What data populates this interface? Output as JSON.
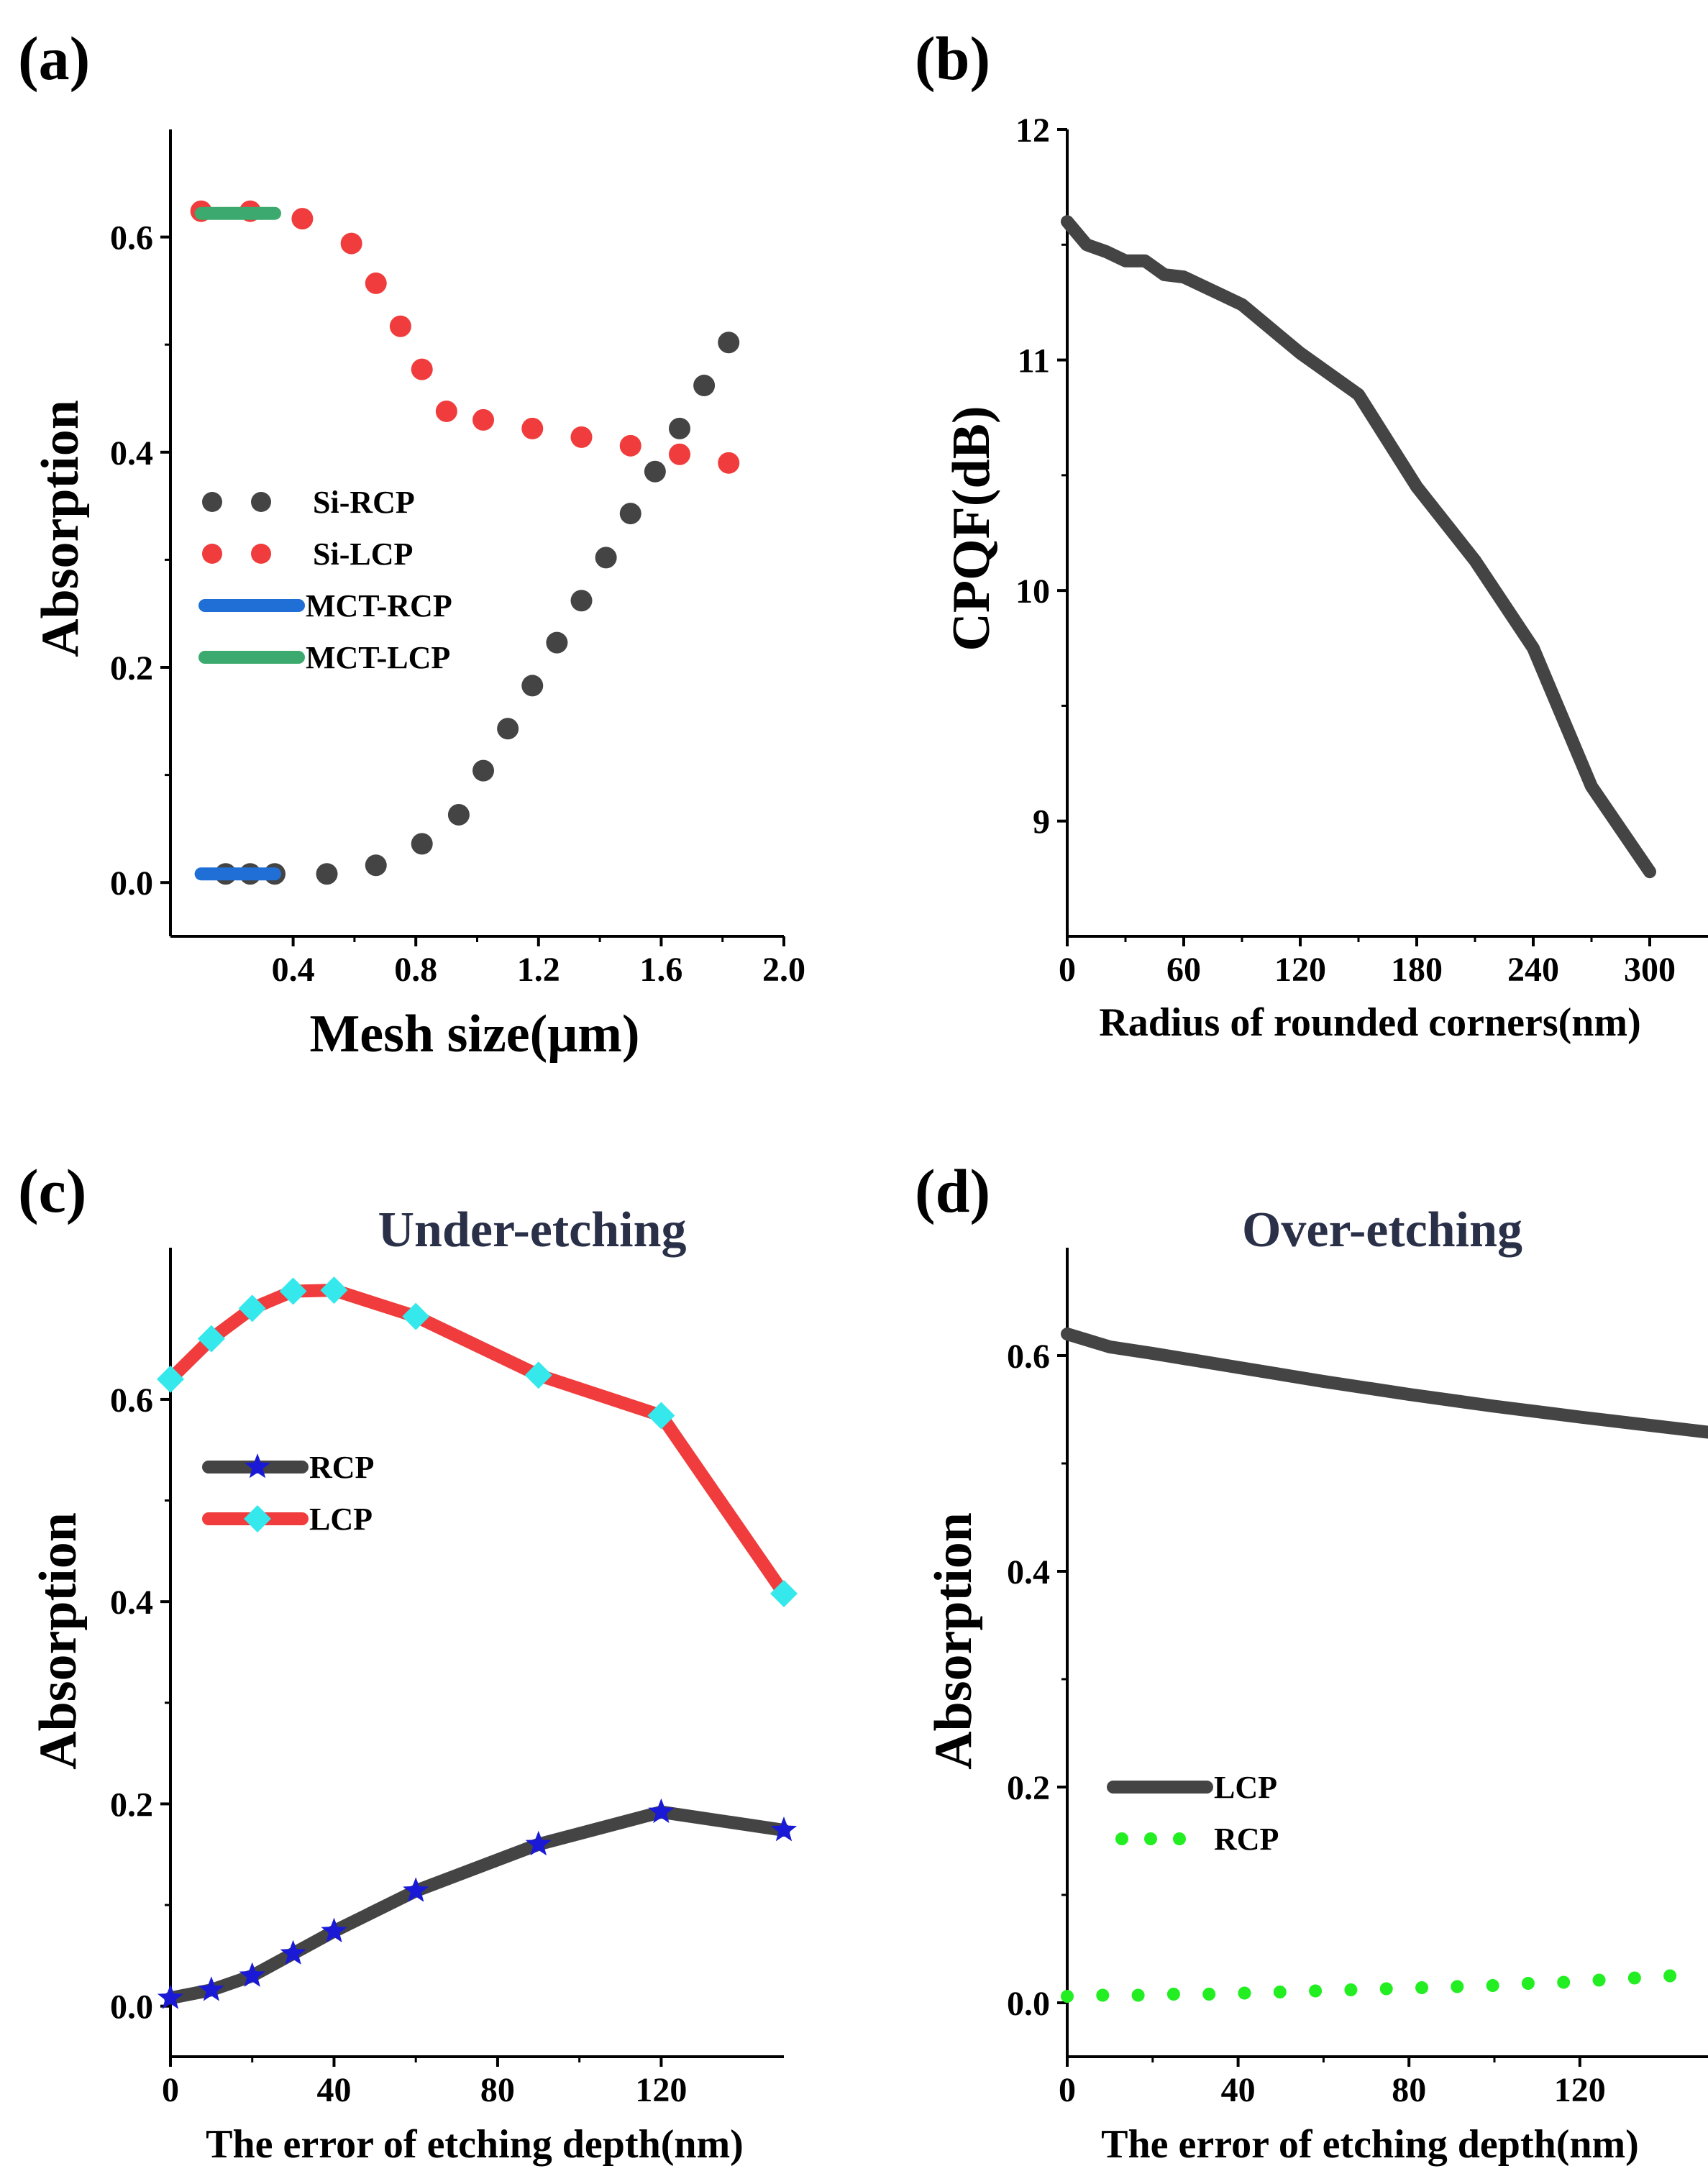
{
  "figure": {
    "background": "#ffffff"
  },
  "chart_data": [
    {
      "id": "a",
      "type": "scatter",
      "panel_label": "(a)",
      "title": "",
      "xlabel": "Mesh size(μm)",
      "ylabel": "Absorption",
      "xlim": [
        0.0,
        2.0
      ],
      "ylim": [
        -0.05,
        0.7
      ],
      "xticks": [
        0.4,
        0.8,
        1.2,
        1.6,
        2.0
      ],
      "xtick_labels": [
        "0.4",
        "0.8",
        "1.2",
        "1.6",
        "2.0"
      ],
      "yticks": [
        0.0,
        0.2,
        0.4,
        0.6
      ],
      "ytick_labels": [
        "0.0",
        "0.2",
        "0.4",
        "0.6"
      ],
      "legend_position": "center-left",
      "series": [
        {
          "name": "Si-RCP",
          "style": "dots",
          "color": "#444444",
          "x": [
            0.18,
            0.26,
            0.34,
            0.51,
            0.67,
            0.82,
            0.94,
            1.02,
            1.1,
            1.18,
            1.26,
            1.34,
            1.42,
            1.5,
            1.58,
            1.66,
            1.74,
            1.82
          ],
          "y": [
            0.008,
            0.008,
            0.008,
            0.008,
            0.016,
            0.036,
            0.063,
            0.104,
            0.143,
            0.183,
            0.223,
            0.262,
            0.302,
            0.343,
            0.382,
            0.422,
            0.462,
            0.502
          ]
        },
        {
          "name": "Si-LCP",
          "style": "dots",
          "color": "#f03c3c",
          "x": [
            0.1,
            0.26,
            0.43,
            0.59,
            0.67,
            0.75,
            0.82,
            0.9,
            1.02,
            1.18,
            1.34,
            1.5,
            1.66,
            1.82
          ],
          "y": [
            0.624,
            0.624,
            0.617,
            0.594,
            0.557,
            0.517,
            0.477,
            0.438,
            0.43,
            0.422,
            0.414,
            0.406,
            0.398,
            0.39
          ]
        },
        {
          "name": "MCT-RCP",
          "style": "line",
          "color": "#1f6fd6",
          "x": [
            0.1,
            0.34
          ],
          "y": [
            0.008,
            0.008
          ]
        },
        {
          "name": "MCT-LCP",
          "style": "line",
          "color": "#3caa6e",
          "x": [
            0.1,
            0.34
          ],
          "y": [
            0.622,
            0.622
          ]
        }
      ]
    },
    {
      "id": "b",
      "type": "line",
      "panel_label": "(b)",
      "title": "",
      "xlabel": "Radius of rounded corners(nm)",
      "ylabel": "CPQF(dB)",
      "xlim": [
        0,
        330
      ],
      "ylim": [
        8.5,
        12
      ],
      "xticks": [
        0,
        60,
        120,
        180,
        240,
        300
      ],
      "xtick_labels": [
        "0",
        "60",
        "120",
        "180",
        "240",
        "300"
      ],
      "yticks": [
        9,
        10,
        11,
        12
      ],
      "ytick_labels": [
        "9",
        "10",
        "11",
        "12"
      ],
      "series": [
        {
          "name": "CPQF",
          "color": "#444444",
          "x": [
            0,
            10,
            20,
            30,
            40,
            50,
            60,
            70,
            80,
            90,
            100,
            120,
            150,
            180,
            210,
            240,
            270,
            300
          ],
          "y": [
            11.6,
            11.5,
            11.47,
            11.43,
            11.43,
            11.37,
            11.36,
            11.32,
            11.28,
            11.24,
            11.17,
            11.03,
            10.85,
            10.45,
            10.13,
            9.75,
            9.15,
            8.78
          ]
        }
      ]
    },
    {
      "id": "c",
      "type": "line",
      "panel_label": "(c)",
      "title": "Under-etching",
      "xlabel": "The error of etching depth(nm)",
      "ylabel": "Absorption",
      "xlim": [
        0,
        150
      ],
      "ylim": [
        -0.05,
        0.75
      ],
      "xticks": [
        0,
        40,
        80,
        120
      ],
      "xtick_labels": [
        "0",
        "40",
        "80",
        "120"
      ],
      "yticks": [
        0.0,
        0.2,
        0.4,
        0.6
      ],
      "ytick_labels": [
        "0.0",
        "0.2",
        "0.4",
        "0.6"
      ],
      "legend_position": "upper-left",
      "series": [
        {
          "name": "RCP",
          "color": "#444444",
          "marker": "star",
          "marker_color": "#1a1ad6",
          "x": [
            0,
            10,
            20,
            30,
            40,
            60,
            90,
            120,
            150
          ],
          "y": [
            0.008,
            0.016,
            0.03,
            0.052,
            0.074,
            0.114,
            0.16,
            0.192,
            0.174
          ]
        },
        {
          "name": "LCP",
          "color": "#f03c3c",
          "marker": "diamond",
          "marker_color": "#35e8ec",
          "x": [
            0,
            10,
            20,
            30,
            40,
            60,
            90,
            120,
            150
          ],
          "y": [
            0.62,
            0.66,
            0.69,
            0.707,
            0.708,
            0.682,
            0.624,
            0.584,
            0.408
          ]
        }
      ]
    },
    {
      "id": "d",
      "type": "line",
      "panel_label": "(d)",
      "title": "Over-etching",
      "xlabel": "The error of etching depth(nm)",
      "ylabel": "Absorption",
      "xlim": [
        0,
        150
      ],
      "ylim": [
        -0.05,
        0.7
      ],
      "xticks": [
        0,
        40,
        80,
        120
      ],
      "xtick_labels": [
        "0",
        "40",
        "80",
        "120"
      ],
      "yticks": [
        0.0,
        0.2,
        0.4,
        0.6
      ],
      "ytick_labels": [
        "0.0",
        "0.2",
        "0.4",
        "0.6"
      ],
      "legend_position": "lower-left",
      "series": [
        {
          "name": "LCP",
          "style": "line",
          "color": "#444444",
          "x": [
            0,
            10,
            20,
            40,
            60,
            80,
            100,
            120,
            150
          ],
          "y": [
            0.62,
            0.608,
            0.602,
            0.589,
            0.576,
            0.564,
            0.553,
            0.543,
            0.529
          ]
        },
        {
          "name": "RCP",
          "style": "dots",
          "color": "#22ee22",
          "x": [
            0,
            8.3,
            16.6,
            24.9,
            33.2,
            41.5,
            49.8,
            58.1,
            66.4,
            74.7,
            83,
            91.3,
            99.6,
            107.9,
            116.2,
            124.5,
            132.8,
            141.1
          ],
          "y": [
            0.006,
            0.007,
            0.007,
            0.008,
            0.008,
            0.009,
            0.01,
            0.011,
            0.012,
            0.013,
            0.014,
            0.015,
            0.016,
            0.018,
            0.019,
            0.021,
            0.023,
            0.025
          ]
        }
      ]
    }
  ]
}
